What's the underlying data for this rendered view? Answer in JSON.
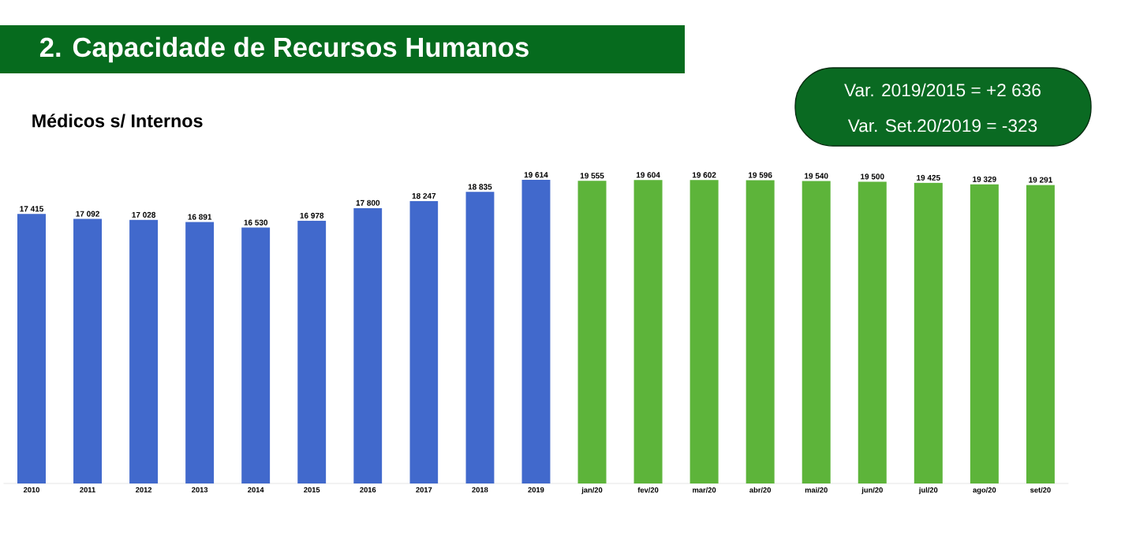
{
  "chart_data": {
    "type": "bar",
    "title": "2. Capacidade de Recursos Humanos",
    "subtitle": "Médicos s/ Internos",
    "annotations": [
      "Var. 2019/2015 = +2 636",
      "Var. Set.20/2019 = -323"
    ],
    "categories": [
      "2010",
      "2011",
      "2012",
      "2013",
      "2014",
      "2015",
      "2016",
      "2017",
      "2018",
      "2019",
      "jan/20",
      "fev/20",
      "mar/20",
      "abr/20",
      "mai/20",
      "jun/20",
      "jul/20",
      "ago/20",
      "set/20"
    ],
    "values": [
      17415,
      17092,
      17028,
      16891,
      16530,
      16978,
      17800,
      18247,
      18835,
      19614,
      19555,
      19604,
      19602,
      19596,
      19540,
      19500,
      19425,
      19329,
      19291
    ],
    "value_labels": [
      "17 415",
      "17 092",
      "17 028",
      "16 891",
      "16 530",
      "16 978",
      "17 800",
      "18 247",
      "18 835",
      "19 614",
      "19 555",
      "19 604",
      "19 602",
      "19 596",
      "19 540",
      "19 500",
      "19 425",
      "19 329",
      "19 291"
    ],
    "colors": [
      "#4169cc",
      "#4169cc",
      "#4169cc",
      "#4169cc",
      "#4169cc",
      "#4169cc",
      "#4169cc",
      "#4169cc",
      "#4169cc",
      "#4169cc",
      "#5db43a",
      "#5db43a",
      "#5db43a",
      "#5db43a",
      "#5db43a",
      "#5db43a",
      "#5db43a",
      "#5db43a",
      "#5db43a"
    ],
    "tick_labels": "x"
  }
}
